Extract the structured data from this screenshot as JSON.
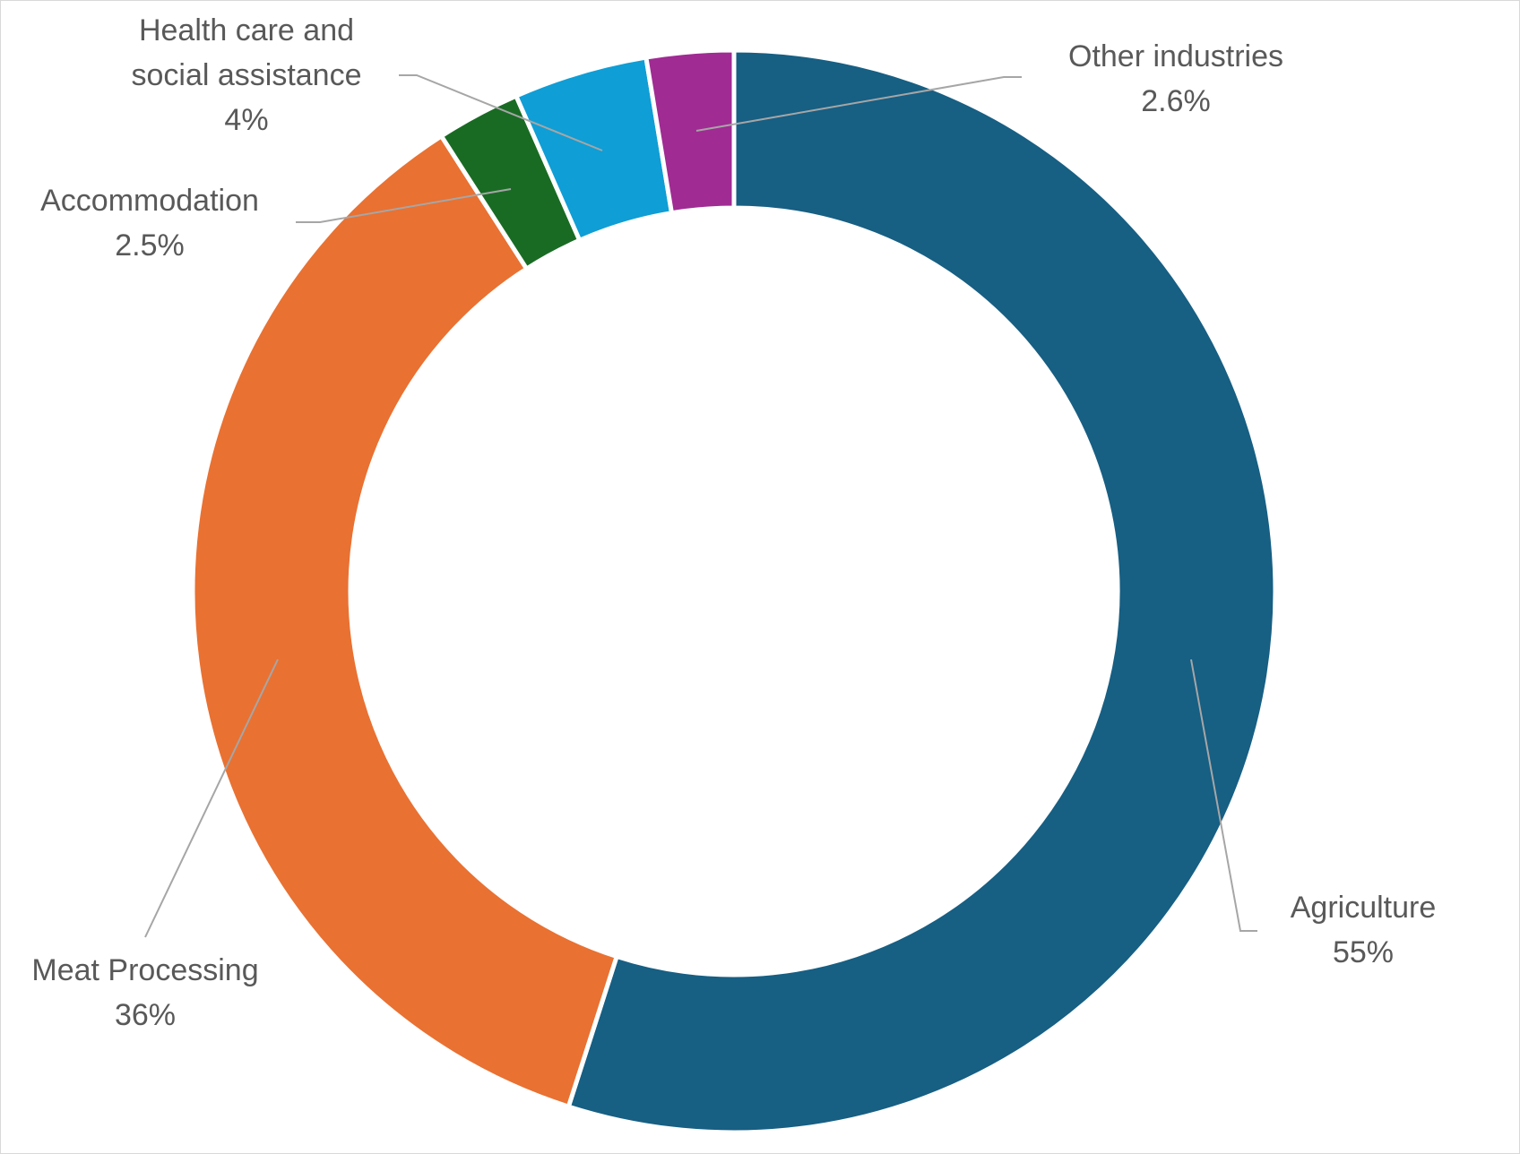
{
  "chart_data": {
    "type": "pie",
    "donut": true,
    "start": "top, clockwise",
    "slices": [
      {
        "name": "Agriculture",
        "lines": [
          "Agriculture"
        ],
        "value_label": "55%",
        "value": 55,
        "color": "#175f83"
      },
      {
        "name": "Meat Processing",
        "lines": [
          "Meat Processing"
        ],
        "value_label": "36%",
        "value": 36,
        "color": "#e97132"
      },
      {
        "name": "Accommodation",
        "lines": [
          "Accommodation"
        ],
        "value_label": "2.5%",
        "value": 2.5,
        "color": "#196b24"
      },
      {
        "name": "Health care and social assistance",
        "lines": [
          "Health care and",
          "social assistance"
        ],
        "value_label": "4%",
        "value": 4,
        "color": "#0f9ed5"
      },
      {
        "name": "Other industries",
        "lines": [
          "Other industries"
        ],
        "value_label": "2.6%",
        "value": 2.6,
        "color": "#a02b93"
      }
    ],
    "leader_line_color": "#a6a6a6"
  }
}
